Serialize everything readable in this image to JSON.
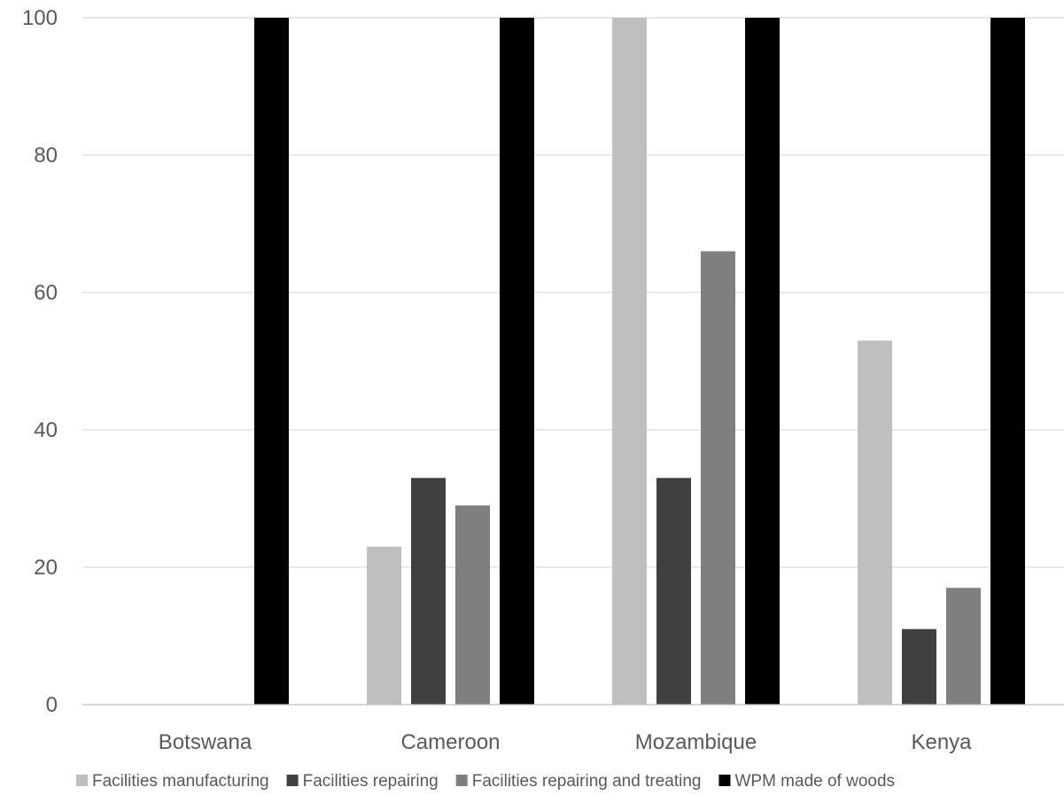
{
  "chart_data": {
    "type": "bar",
    "categories": [
      "Botswana",
      "Cameroon",
      "Mozambique",
      "Kenya"
    ],
    "series": [
      {
        "name": "Facilities manufacturing",
        "color": "#bfbfbf",
        "values": [
          0,
          23,
          100,
          53
        ]
      },
      {
        "name": "Facilities repairing",
        "color": "#404040",
        "values": [
          0,
          33,
          33,
          11
        ]
      },
      {
        "name": "Facilities repairing and treating",
        "color": "#7f7f7f",
        "values": [
          0,
          29,
          66,
          17
        ]
      },
      {
        "name": "WPM made of woods",
        "color": "#000000",
        "values": [
          100,
          100,
          100,
          100
        ]
      }
    ],
    "ylim": [
      0,
      100
    ],
    "yticks": [
      0,
      20,
      40,
      60,
      80,
      100
    ],
    "title": "",
    "xlabel": "",
    "ylabel": "",
    "grid": true,
    "legend_position": "bottom"
  }
}
